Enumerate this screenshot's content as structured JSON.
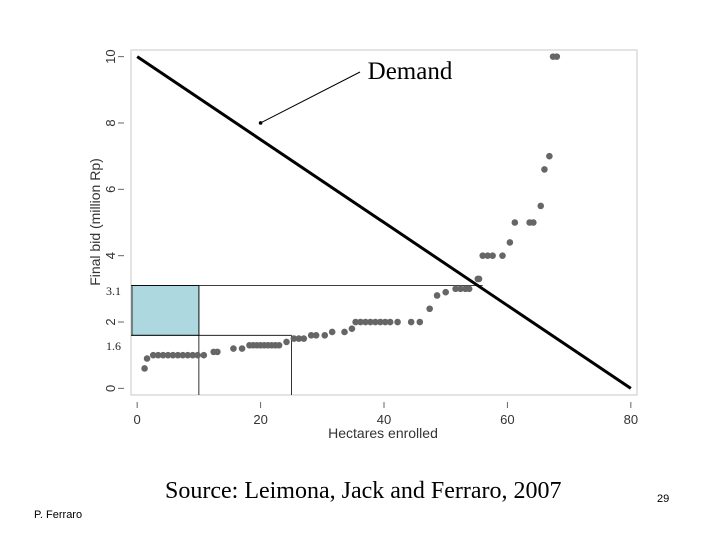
{
  "chart_data": {
    "type": "scatter",
    "xlabel": "Hectares enrolled",
    "ylabel": "Final bid (million Rp)",
    "xlim": [
      -1,
      81
    ],
    "ylim": [
      -0.2,
      10.2
    ],
    "x_ticks": [
      0,
      20,
      40,
      60,
      80
    ],
    "y_ticks": [
      0,
      2,
      4,
      6,
      8,
      10
    ],
    "grid": false,
    "points": [
      [
        1.2,
        0.6
      ],
      [
        1.6,
        0.9
      ],
      [
        2.6,
        1.0
      ],
      [
        3.4,
        1.0
      ],
      [
        4.2,
        1.0
      ],
      [
        5.0,
        1.0
      ],
      [
        5.8,
        1.0
      ],
      [
        6.6,
        1.0
      ],
      [
        7.4,
        1.0
      ],
      [
        8.2,
        1.0
      ],
      [
        9.0,
        1.0
      ],
      [
        9.8,
        1.0
      ],
      [
        10.8,
        1.0
      ],
      [
        12.4,
        1.1
      ],
      [
        13.0,
        1.1
      ],
      [
        15.6,
        1.2
      ],
      [
        17.0,
        1.2
      ],
      [
        18.2,
        1.3
      ],
      [
        18.8,
        1.3
      ],
      [
        19.4,
        1.3
      ],
      [
        20.0,
        1.3
      ],
      [
        20.6,
        1.3
      ],
      [
        21.2,
        1.3
      ],
      [
        21.8,
        1.3
      ],
      [
        22.4,
        1.3
      ],
      [
        23.0,
        1.3
      ],
      [
        24.2,
        1.4
      ],
      [
        25.4,
        1.5
      ],
      [
        26.2,
        1.5
      ],
      [
        27.0,
        1.5
      ],
      [
        28.2,
        1.6
      ],
      [
        29.0,
        1.6
      ],
      [
        30.4,
        1.6
      ],
      [
        31.6,
        1.7
      ],
      [
        33.6,
        1.7
      ],
      [
        34.8,
        1.8
      ],
      [
        35.4,
        2.0
      ],
      [
        36.2,
        2.0
      ],
      [
        37.0,
        2.0
      ],
      [
        37.8,
        2.0
      ],
      [
        38.6,
        2.0
      ],
      [
        39.4,
        2.0
      ],
      [
        40.2,
        2.0
      ],
      [
        41.0,
        2.0
      ],
      [
        42.2,
        2.0
      ],
      [
        44.4,
        2.0
      ],
      [
        45.8,
        2.0
      ],
      [
        47.4,
        2.4
      ],
      [
        48.6,
        2.8
      ],
      [
        50.0,
        2.9
      ],
      [
        51.6,
        3.0
      ],
      [
        52.4,
        3.0
      ],
      [
        53.2,
        3.0
      ],
      [
        53.8,
        3.0
      ],
      [
        55.2,
        3.3
      ],
      [
        55.4,
        3.3
      ],
      [
        56.0,
        4.0
      ],
      [
        56.8,
        4.0
      ],
      [
        57.6,
        4.0
      ],
      [
        59.2,
        4.0
      ],
      [
        60.4,
        4.4
      ],
      [
        61.2,
        5.0
      ],
      [
        63.6,
        5.0
      ],
      [
        64.2,
        5.0
      ],
      [
        65.4,
        5.5
      ],
      [
        66.0,
        6.6
      ],
      [
        66.8,
        7.0
      ],
      [
        67.4,
        10.0
      ],
      [
        68.0,
        10.0
      ]
    ],
    "demand_line": [
      [
        0,
        10
      ],
      [
        80,
        0
      ]
    ],
    "reference_lines": {
      "price_high": 3.1,
      "price_low": 1.6,
      "shaded_x_max": 10,
      "drop_line_x": 25
    },
    "tick_labels": {
      "price_high": "3.1",
      "price_low": "1.6"
    },
    "annotation": {
      "text": "Demand",
      "points_to": [
        20,
        8
      ]
    }
  },
  "source": "Source: Leimona, Jack and Ferraro, 2007",
  "author": "P. Ferraro",
  "page_number": "29",
  "colors": {
    "points": "#666666",
    "demand": "#000000",
    "shade": "#add8e0",
    "frame": "#c8c8c8"
  }
}
